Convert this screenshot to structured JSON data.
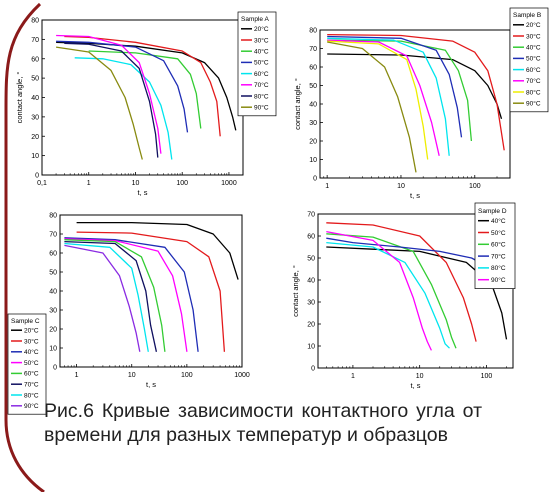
{
  "chart_data": [
    {
      "type": "line",
      "panel": "Sample A",
      "xlabel": "t, s",
      "ylabel": "contact angle, °",
      "xscale": "log",
      "xlim": [
        0.1,
        2000
      ],
      "ylim": [
        0,
        80
      ],
      "xticks": [
        "0,1",
        "1",
        "10",
        "100",
        "1000"
      ],
      "yticks": [
        "0",
        "10",
        "20",
        "30",
        "40",
        "50",
        "60",
        "70",
        "80"
      ],
      "legend_title": "Sample A",
      "legend_position": "top-right",
      "series": [
        {
          "name": "20°C",
          "color": "#000000",
          "x": [
            0.2,
            1,
            10,
            100,
            300,
            600,
            900,
            1200,
            1400
          ],
          "y": [
            68.5,
            68,
            66.5,
            63,
            58,
            50,
            40,
            30,
            23
          ]
        },
        {
          "name": "30°C",
          "color": "#e31a1c",
          "x": [
            0.3,
            1,
            10,
            100,
            250,
            400,
            550,
            650
          ],
          "y": [
            71.5,
            71,
            68.5,
            64,
            58,
            48,
            38,
            20
          ]
        },
        {
          "name": "40°C",
          "color": "#33cc33",
          "x": [
            1,
            10,
            80,
            150,
            200,
            250
          ],
          "y": [
            64,
            63,
            60,
            52,
            42,
            24
          ]
        },
        {
          "name": "50°C",
          "color": "#1f2db5",
          "x": [
            0.2,
            1,
            10,
            40,
            80,
            110,
            130
          ],
          "y": [
            69,
            68.5,
            66,
            59,
            46,
            34,
            22
          ]
        },
        {
          "name": "60°C",
          "color": "#00e5ee",
          "x": [
            0.5,
            2,
            8,
            20,
            35,
            50,
            60
          ],
          "y": [
            60.5,
            60,
            57,
            48,
            36,
            22,
            8
          ]
        },
        {
          "name": "70°C",
          "color": "#ff00ff",
          "x": [
            0.2,
            1,
            5,
            12,
            20,
            30,
            35
          ],
          "y": [
            72,
            71.5,
            67,
            58,
            42,
            24,
            11
          ]
        },
        {
          "name": "80°C",
          "color": "#101060",
          "x": [
            0.3,
            1,
            5,
            12,
            20,
            27,
            30
          ],
          "y": [
            68,
            67.5,
            64,
            55,
            38,
            21,
            9
          ]
        },
        {
          "name": "90°C",
          "color": "#888a10",
          "x": [
            0.2,
            1,
            3,
            6,
            9,
            12,
            14
          ],
          "y": [
            66,
            63.5,
            54,
            40,
            26,
            14,
            8
          ]
        }
      ]
    },
    {
      "type": "line",
      "panel": "Sample B",
      "xlabel": "t, s",
      "ylabel": "contact angle, °",
      "xscale": "log",
      "xlim": [
        0.8,
        300
      ],
      "ylim": [
        0,
        80
      ],
      "xticks": [
        "1",
        "10",
        "100"
      ],
      "yticks": [
        "0",
        "10",
        "20",
        "30",
        "40",
        "50",
        "60",
        "70",
        "80"
      ],
      "legend_title": "Sample B",
      "legend_position": "top-right",
      "series": [
        {
          "name": "20°C",
          "color": "#000000",
          "x": [
            1,
            10,
            50,
            100,
            150,
            200,
            230
          ],
          "y": [
            67,
            66.5,
            64,
            58,
            50,
            40,
            32
          ]
        },
        {
          "name": "30°C",
          "color": "#e31a1c",
          "x": [
            1,
            10,
            50,
            100,
            150,
            200,
            250
          ],
          "y": [
            77.5,
            77,
            74,
            68,
            58,
            40,
            15
          ]
        },
        {
          "name": "40°C",
          "color": "#33cc33",
          "x": [
            1,
            10,
            40,
            60,
            80,
            90
          ],
          "y": [
            74.5,
            74,
            69,
            58,
            42,
            20
          ]
        },
        {
          "name": "50°C",
          "color": "#1f2db5",
          "x": [
            1,
            10,
            30,
            45,
            58,
            66
          ],
          "y": [
            76.5,
            75.5,
            69,
            56,
            38,
            22
          ]
        },
        {
          "name": "60°C",
          "color": "#00e5ee",
          "x": [
            1,
            8,
            20,
            30,
            40,
            45
          ],
          "y": [
            75.5,
            74.5,
            68,
            54,
            32,
            12
          ]
        },
        {
          "name": "70°C",
          "color": "#ff00ff",
          "x": [
            1,
            5,
            12,
            18,
            26,
            33
          ],
          "y": [
            74.5,
            73.5,
            66,
            50,
            30,
            12
          ]
        },
        {
          "name": "80°C",
          "color": "#eeee00",
          "x": [
            1,
            5,
            12,
            16,
            20,
            23
          ],
          "y": [
            74,
            72.5,
            64,
            48,
            28,
            10
          ]
        },
        {
          "name": "90°C",
          "color": "#888a10",
          "x": [
            1,
            3,
            6,
            9,
            13,
            16
          ],
          "y": [
            73.5,
            70,
            60,
            44,
            22,
            3
          ]
        }
      ]
    },
    {
      "type": "line",
      "panel": "Sample C",
      "xlabel": "t, s",
      "ylabel": "",
      "xscale": "log",
      "xlim": [
        0.5,
        1000
      ],
      "ylim": [
        0,
        80
      ],
      "xticks": [
        "1",
        "10",
        "100",
        "1000"
      ],
      "yticks": [
        "0",
        "10",
        "20",
        "30",
        "40",
        "50",
        "60",
        "70",
        "80"
      ],
      "legend_title": "Sample C",
      "legend_position": "left",
      "series": [
        {
          "name": "20°C",
          "color": "#000000",
          "x": [
            1,
            10,
            100,
            300,
            600,
            850
          ],
          "y": [
            76,
            76,
            75,
            70,
            60,
            46
          ]
        },
        {
          "name": "30°C",
          "color": "#e31a1c",
          "x": [
            1,
            10,
            100,
            250,
            400,
            480
          ],
          "y": [
            71,
            70.5,
            66,
            58,
            40,
            8
          ]
        },
        {
          "name": "40°C",
          "color": "#1f2db5",
          "x": [
            0.6,
            5,
            40,
            90,
            130,
            160
          ],
          "y": [
            68,
            67,
            63,
            50,
            30,
            8
          ]
        },
        {
          "name": "50°C",
          "color": "#ff00ff",
          "x": [
            0.6,
            5,
            30,
            55,
            80,
            100
          ],
          "y": [
            67.5,
            66.5,
            61,
            48,
            28,
            8
          ]
        },
        {
          "name": "60°C",
          "color": "#33cc33",
          "x": [
            0.6,
            5,
            15,
            25,
            35,
            40
          ],
          "y": [
            67,
            66,
            58,
            42,
            22,
            8
          ]
        },
        {
          "name": "70°C",
          "color": "#101060",
          "x": [
            0.6,
            5,
            12,
            18,
            22,
            28
          ],
          "y": [
            66,
            65,
            56,
            40,
            22,
            8
          ]
        },
        {
          "name": "80°C",
          "color": "#00e5ee",
          "x": [
            0.6,
            4,
            10,
            13,
            17,
            20
          ],
          "y": [
            65,
            63,
            52,
            38,
            20,
            8
          ]
        },
        {
          "name": "90°C",
          "color": "#8a2be2",
          "x": [
            0.6,
            3,
            6,
            9,
            12,
            14
          ],
          "y": [
            64,
            60,
            48,
            32,
            18,
            8
          ]
        }
      ]
    },
    {
      "type": "line",
      "panel": "Sample D",
      "xlabel": "t, s",
      "ylabel": "contact angle, °",
      "xscale": "log",
      "xlim": [
        0.3,
        250
      ],
      "ylim": [
        0,
        70
      ],
      "xticks": [
        "1",
        "10",
        "100"
      ],
      "yticks": [
        "0",
        "10",
        "20",
        "30",
        "40",
        "50",
        "60",
        "70"
      ],
      "legend_title": "Sample D",
      "legend_position": "top-right",
      "series": [
        {
          "name": "40°C",
          "color": "#000000",
          "x": [
            0.4,
            2,
            10,
            50,
            120,
            170,
            200
          ],
          "y": [
            55,
            54,
            53,
            48,
            38,
            25,
            13
          ]
        },
        {
          "name": "50°C",
          "color": "#e31a1c",
          "x": [
            0.4,
            2,
            10,
            25,
            45,
            60,
            70
          ],
          "y": [
            66,
            65,
            60,
            48,
            32,
            20,
            12
          ]
        },
        {
          "name": "60°C",
          "color": "#33cc33",
          "x": [
            0.4,
            2,
            8,
            15,
            25,
            30,
            35
          ],
          "y": [
            61,
            59.5,
            53,
            38,
            22,
            14,
            9
          ]
        },
        {
          "name": "70°C",
          "color": "#1f2db5",
          "x": [
            0.4,
            1,
            5,
            20,
            60,
            120,
            180
          ],
          "y": [
            59,
            57,
            55,
            53,
            50,
            45,
            38
          ]
        },
        {
          "name": "80°C",
          "color": "#00e5ee",
          "x": [
            0.4,
            2,
            6,
            12,
            20,
            24,
            28
          ],
          "y": [
            57,
            55,
            48,
            34,
            18,
            11,
            9
          ]
        },
        {
          "name": "90°C",
          "color": "#ff00ff",
          "x": [
            0.4,
            2,
            5,
            8,
            11,
            13,
            15
          ],
          "y": [
            62,
            58,
            48,
            32,
            18,
            12,
            8
          ]
        }
      ]
    }
  ],
  "caption": "Рис.6 Кривые зависимости контактного угла от времени для разных температур и образцов",
  "colors": {
    "frame_arc": "#8b1a1a",
    "text": "#222222"
  }
}
